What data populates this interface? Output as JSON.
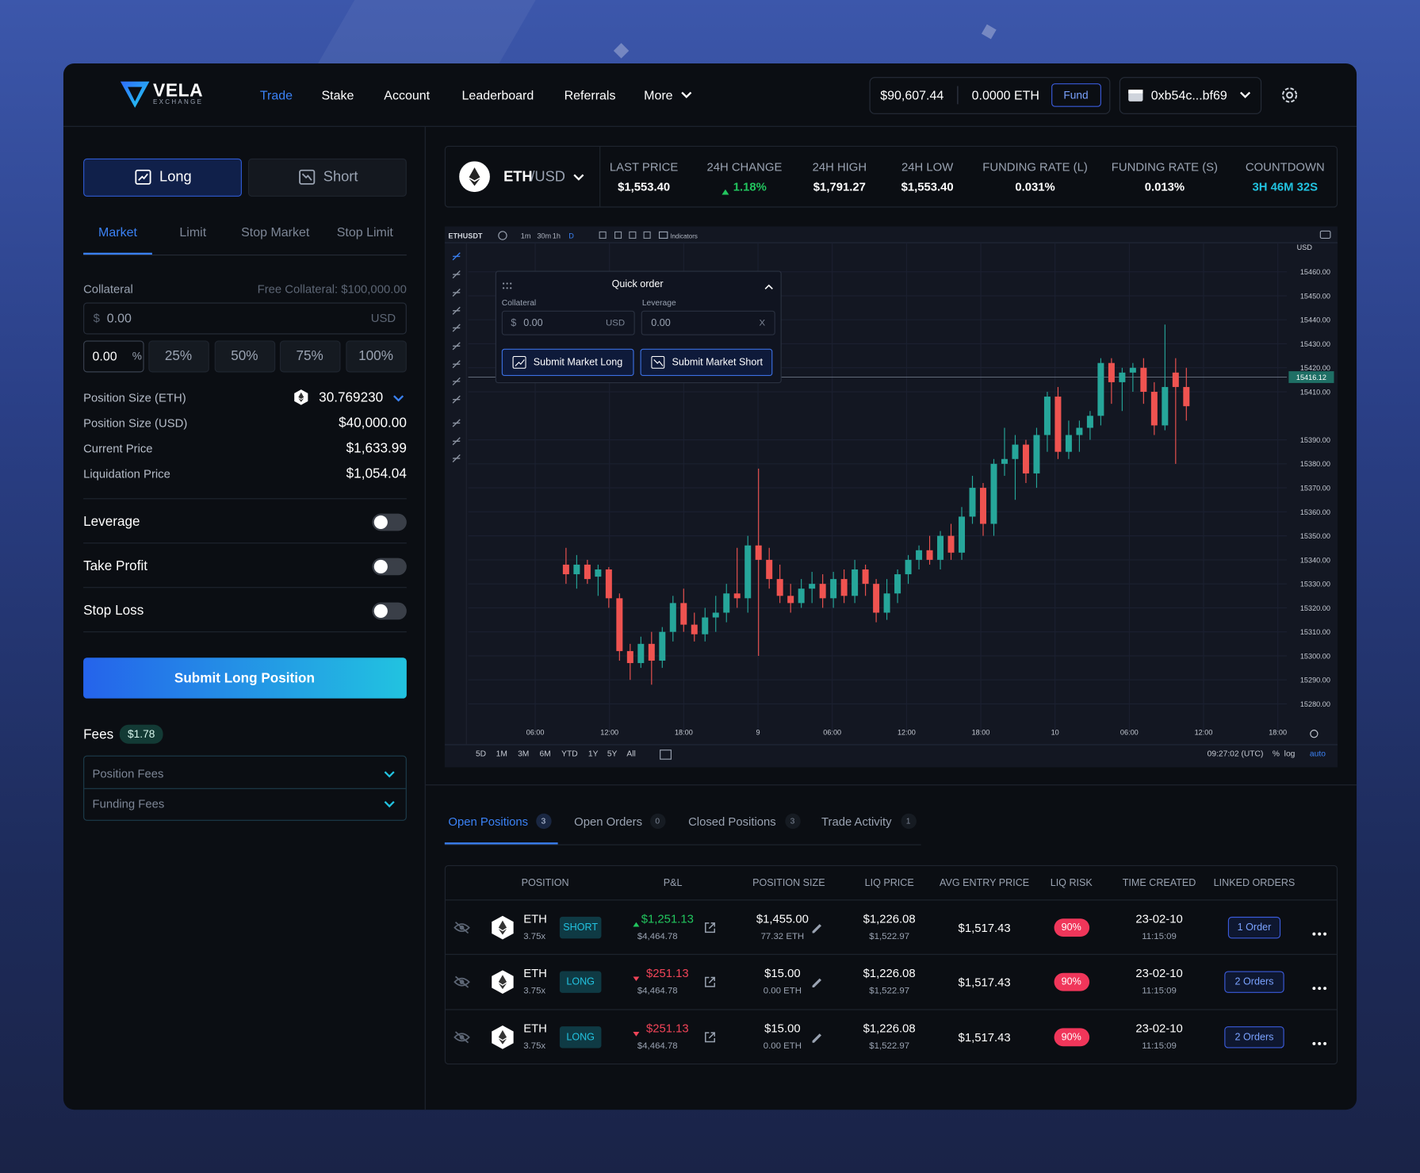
{
  "nav": {
    "logo": "VELA",
    "logo_sub": "EXCHANGE",
    "links": [
      "Trade",
      "Stake",
      "Account",
      "Leaderboard",
      "Referrals",
      "More"
    ],
    "balance": "$90,607.44",
    "eth_balance": "0.0000 ETH",
    "fund": "Fund",
    "wallet": "0xb54c...bf69"
  },
  "order_panel": {
    "sides": [
      "Long",
      "Short"
    ],
    "order_types": [
      "Market",
      "Limit",
      "Stop Market",
      "Stop Limit"
    ],
    "collateral_label": "Collateral",
    "free_collateral": "Free Collateral: $100,000.00",
    "collateral_prefix": "$",
    "collateral_value": "0.00",
    "collateral_unit": "USD",
    "percent_value": "0.00",
    "percent_unit": "%",
    "percents": [
      "25%",
      "50%",
      "75%",
      "100%"
    ],
    "stats": [
      {
        "label": "Position Size (ETH)",
        "value": "30.769230"
      },
      {
        "label": "Position Size (USD)",
        "value": "$40,000.00"
      },
      {
        "label": "Current Price",
        "value": "$1,633.99"
      },
      {
        "label": "Liquidation Price",
        "value": "$1,054.04"
      }
    ],
    "toggles": [
      "Leverage",
      "Take Profit",
      "Stop Loss"
    ],
    "submit": "Submit Long Position",
    "fees_label": "Fees",
    "fees_value": "$1.78",
    "fee_rows": [
      "Position Fees",
      "Funding Fees"
    ]
  },
  "market": {
    "base": "ETH",
    "quote": "/USD",
    "stats": [
      {
        "label": "LAST PRICE",
        "value": "$1,553.40"
      },
      {
        "label": "24H CHANGE",
        "value": "1.18%"
      },
      {
        "label": "24H HIGH",
        "value": "$1,791.27"
      },
      {
        "label": "24H LOW",
        "value": "$1,553.40"
      },
      {
        "label": "FUNDING RATE (L)",
        "value": "0.031%"
      },
      {
        "label": "FUNDING RATE (S)",
        "value": "0.013%"
      },
      {
        "label": "COUNTDOWN",
        "value": "3H 46M 32S"
      }
    ]
  },
  "chart": {
    "type": "candlestick",
    "symbol": "ETHUSDT",
    "intervals": [
      "1m",
      "30m",
      "1h",
      "D"
    ],
    "indicators": "Indicators",
    "currency": "USD",
    "ylim": [
      15270,
      15470
    ],
    "yticks": [
      {
        "value": 15460,
        "label": "15460.00"
      },
      {
        "value": 15450,
        "label": "15450.00"
      },
      {
        "value": 15440,
        "label": "15440.00"
      },
      {
        "value": 15430,
        "label": "15430.00"
      },
      {
        "value": 15420,
        "label": "15420.00"
      },
      {
        "value": 15410,
        "label": "15410.00"
      },
      {
        "value": 15390,
        "label": "15390.00"
      },
      {
        "value": 15380,
        "label": "15380.00"
      },
      {
        "value": 15370,
        "label": "15370.00"
      },
      {
        "value": 15360,
        "label": "15360.00"
      },
      {
        "value": 15350,
        "label": "15350.00"
      },
      {
        "value": 15340,
        "label": "15340.00"
      },
      {
        "value": 15330,
        "label": "15330.00"
      },
      {
        "value": 15320,
        "label": "15320.00"
      },
      {
        "value": 15310,
        "label": "15310.00"
      },
      {
        "value": 15300,
        "label": "15300.00"
      },
      {
        "value": 15290,
        "label": "15290.00"
      },
      {
        "value": 15280,
        "label": "15280.00"
      }
    ],
    "last_price": 15416.12,
    "xlabels": [
      "06:00",
      "12:00",
      "18:00",
      "9",
      "06:00",
      "12:00",
      "18:00",
      "10",
      "06:00",
      "12:00",
      "18:00"
    ],
    "up_color": "#26a69a",
    "down_color": "#ef5350",
    "candles": [
      [
        15338,
        15345,
        15330,
        15334
      ],
      [
        15334,
        15342,
        15328,
        15338
      ],
      [
        15338,
        15340,
        15330,
        15332
      ],
      [
        15333,
        15338,
        15325,
        15336
      ],
      [
        15336,
        15337,
        15320,
        15324
      ],
      [
        15324,
        15326,
        15298,
        15302
      ],
      [
        15302,
        15305,
        15290,
        15297
      ],
      [
        15297,
        15308,
        15295,
        15305
      ],
      [
        15305,
        15310,
        15288,
        15298
      ],
      [
        15298,
        15312,
        15295,
        15310
      ],
      [
        15310,
        15325,
        15306,
        15322
      ],
      [
        15322,
        15328,
        15310,
        15313
      ],
      [
        15313,
        15318,
        15306,
        15309
      ],
      [
        15309,
        15320,
        15306,
        15316
      ],
      [
        15316,
        15325,
        15310,
        15318
      ],
      [
        15318,
        15330,
        15314,
        15326
      ],
      [
        15326,
        15345,
        15320,
        15324
      ],
      [
        15324,
        15350,
        15318,
        15346
      ],
      [
        15346,
        15378,
        15300,
        15340
      ],
      [
        15340,
        15345,
        15328,
        15332
      ],
      [
        15332,
        15338,
        15322,
        15325
      ],
      [
        15325,
        15330,
        15318,
        15322
      ],
      [
        15322,
        15332,
        15320,
        15328
      ],
      [
        15328,
        15335,
        15322,
        15330
      ],
      [
        15330,
        15334,
        15320,
        15324
      ],
      [
        15324,
        15335,
        15320,
        15332
      ],
      [
        15332,
        15336,
        15322,
        15325
      ],
      [
        15325,
        15340,
        15322,
        15336
      ],
      [
        15336,
        15338,
        15325,
        15330
      ],
      [
        15330,
        15332,
        15314,
        15318
      ],
      [
        15318,
        15332,
        15315,
        15326
      ],
      [
        15326,
        15336,
        15322,
        15334
      ],
      [
        15334,
        15342,
        15330,
        15340
      ],
      [
        15340,
        15346,
        15336,
        15344
      ],
      [
        15344,
        15350,
        15338,
        15340
      ],
      [
        15340,
        15352,
        15336,
        15350
      ],
      [
        15350,
        15355,
        15340,
        15343
      ],
      [
        15343,
        15362,
        15340,
        15358
      ],
      [
        15358,
        15375,
        15355,
        15370
      ],
      [
        15370,
        15372,
        15350,
        15355
      ],
      [
        15355,
        15382,
        15350,
        15380
      ],
      [
        15380,
        15395,
        15375,
        15382
      ],
      [
        15382,
        15392,
        15365,
        15388
      ],
      [
        15388,
        15390,
        15372,
        15376
      ],
      [
        15376,
        15395,
        15370,
        15392
      ],
      [
        15392,
        15410,
        15385,
        15408
      ],
      [
        15408,
        15412,
        15382,
        15385
      ],
      [
        15385,
        15398,
        15382,
        15392
      ],
      [
        15392,
        15398,
        15385,
        15395
      ],
      [
        15395,
        15402,
        15390,
        15400
      ],
      [
        15400,
        15424,
        15396,
        15422
      ],
      [
        15422,
        15424,
        15405,
        15414
      ],
      [
        15414,
        15420,
        15402,
        15418
      ],
      [
        15418,
        15422,
        15410,
        15420
      ],
      [
        15420,
        15424,
        15405,
        15410
      ],
      [
        15410,
        15414,
        15392,
        15396
      ],
      [
        15396,
        15438,
        15394,
        15412
      ],
      [
        15418,
        15424,
        15380,
        15412
      ],
      [
        15412,
        15420,
        15398,
        15404
      ]
    ],
    "ranges": [
      "5D",
      "1M",
      "3M",
      "6M",
      "YTD",
      "1Y",
      "5Y",
      "All"
    ],
    "clock": "09:27:02 (UTC)",
    "options": [
      "%",
      "log",
      "auto"
    ]
  },
  "quick_order": {
    "title": "Quick order",
    "collateral_label": "Collateral",
    "leverage_label": "Leverage",
    "collateral_prefix": "$",
    "collateral_value": "0.00",
    "collateral_unit": "USD",
    "leverage_value": "0.00",
    "clear": "X",
    "buttons": [
      "Submit Market Long",
      "Submit Market Short"
    ]
  },
  "positions": {
    "tabs": [
      {
        "label": "Open Positions",
        "count": "3"
      },
      {
        "label": "Open Orders",
        "count": "0"
      },
      {
        "label": "Closed Positions",
        "count": "3"
      },
      {
        "label": "Trade Activity",
        "count": "1"
      }
    ],
    "columns": [
      "POSITION",
      "P&L",
      "POSITION SIZE",
      "LIQ PRICE",
      "AVG ENTRY PRICE",
      "LIQ RISK",
      "TIME CREATED",
      "LINKED ORDERS"
    ],
    "rows": [
      {
        "asset": "ETH",
        "leverage": "3.75x",
        "side": "SHORT",
        "pnl": "$1,251.13",
        "pnl_trend": "up",
        "pnl_sub": "$4,464.78",
        "size": "$1,455.00",
        "size_sub": "77.32 ETH",
        "liq": "$1,226.08",
        "liq_sub": "$1,522.97",
        "entry": "$1,517.43",
        "risk": "90%",
        "date": "23-02-10",
        "time": "11:15:09",
        "orders": "1 Order"
      },
      {
        "asset": "ETH",
        "leverage": "3.75x",
        "side": "LONG",
        "pnl": "$251.13",
        "pnl_trend": "down",
        "pnl_sub": "$4,464.78",
        "size": "$15.00",
        "size_sub": "0.00 ETH",
        "liq": "$1,226.08",
        "liq_sub": "$1,522.97",
        "entry": "$1,517.43",
        "risk": "90%",
        "date": "23-02-10",
        "time": "11:15:09",
        "orders": "2 Orders"
      },
      {
        "asset": "ETH",
        "leverage": "3.75x",
        "side": "LONG",
        "pnl": "$251.13",
        "pnl_trend": "down",
        "pnl_sub": "$4,464.78",
        "size": "$15.00",
        "size_sub": "0.00 ETH",
        "liq": "$1,226.08",
        "liq_sub": "$1,522.97",
        "entry": "$1,517.43",
        "risk": "90%",
        "date": "23-02-10",
        "time": "11:15:09",
        "orders": "2 Orders"
      }
    ]
  }
}
